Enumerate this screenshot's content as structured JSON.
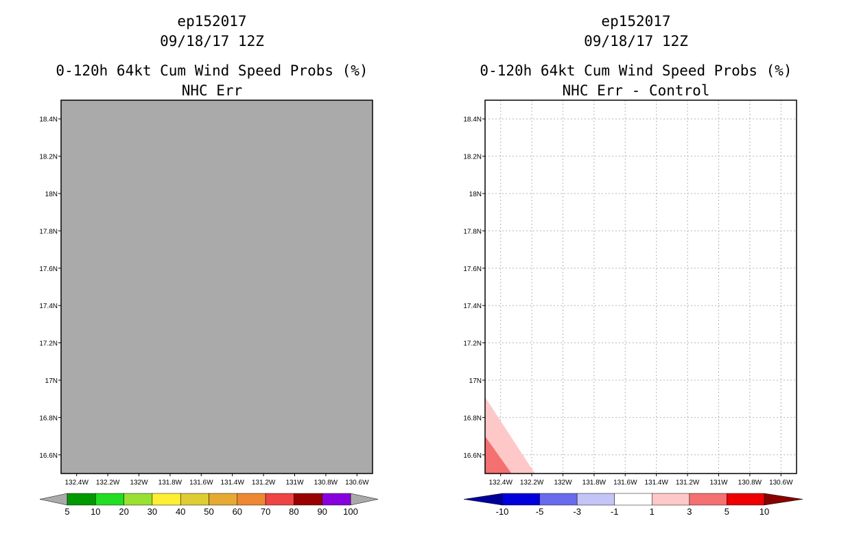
{
  "chart_data": [
    {
      "type": "heatmap",
      "title_lines": [
        "ep152017",
        "09/18/17 12Z",
        "0-120h 64kt Cum Wind Speed Probs (%)",
        "NHC Err"
      ],
      "x_ticks": [
        "132.4W",
        "132.2W",
        "132W",
        "131.8W",
        "131.6W",
        "131.4W",
        "131.2W",
        "131W",
        "130.8W",
        "130.6W"
      ],
      "x_tick_values": [
        -132.4,
        -132.2,
        -132.0,
        -131.8,
        -131.6,
        -131.4,
        -131.2,
        -131.0,
        -130.8,
        -130.6
      ],
      "y_ticks": [
        "18.4N",
        "18.2N",
        "18N",
        "17.8N",
        "17.6N",
        "17.4N",
        "17.2N",
        "17N",
        "16.8N",
        "16.6N"
      ],
      "y_tick_values": [
        18.4,
        18.2,
        18.0,
        17.8,
        17.6,
        17.4,
        17.2,
        17.0,
        16.8,
        16.6
      ],
      "xlim": [
        -132.5,
        -130.5
      ],
      "ylim": [
        16.5,
        18.5
      ],
      "grid": false,
      "field": "no data (entire domain undefined, shaded gray)",
      "undefined_color": "#aaaaaa",
      "colorbar": {
        "labels": [
          "5",
          "10",
          "20",
          "30",
          "40",
          "50",
          "60",
          "70",
          "80",
          "90",
          "100"
        ],
        "colors": [
          "#009900",
          "#22dd22",
          "#99e033",
          "#ffee33",
          "#ddcc33",
          "#e6aa33",
          "#ee8833",
          "#ee4444",
          "#990000",
          "#8800dd"
        ],
        "under_color": "#aaaaaa",
        "over_color": "#aaaaaa"
      }
    },
    {
      "type": "heatmap",
      "title_lines": [
        "ep152017",
        "09/18/17 12Z",
        "0-120h 64kt Cum Wind Speed Probs (%)",
        "NHC Err - Control"
      ],
      "x_ticks": [
        "132.4W",
        "132.2W",
        "132W",
        "131.8W",
        "131.6W",
        "131.4W",
        "131.2W",
        "131W",
        "130.8W",
        "130.6W"
      ],
      "x_tick_values": [
        -132.4,
        -132.2,
        -132.0,
        -131.8,
        -131.6,
        -131.4,
        -131.2,
        -131.0,
        -130.8,
        -130.6
      ],
      "y_ticks": [
        "18.4N",
        "18.2N",
        "18N",
        "17.8N",
        "17.6N",
        "17.4N",
        "17.2N",
        "17N",
        "16.8N",
        "16.6N"
      ],
      "y_tick_values": [
        18.4,
        18.2,
        18.0,
        17.8,
        17.6,
        17.4,
        17.2,
        17.0,
        16.8,
        16.6
      ],
      "xlim": [
        -132.5,
        -130.5
      ],
      "ylim": [
        16.5,
        18.5
      ],
      "grid": true,
      "contours": [
        {
          "level": "1 to 3",
          "color": "#ffc8c8",
          "points": [
            [
              -132.5,
              16.5
            ],
            [
              -132.5,
              16.91
            ],
            [
              -132.18,
              16.5
            ]
          ]
        },
        {
          "level": "3 to 5",
          "color": "#f57070",
          "points": [
            [
              -132.5,
              16.5
            ],
            [
              -132.5,
              16.7
            ],
            [
              -132.33,
              16.5
            ]
          ]
        }
      ],
      "colorbar": {
        "labels": [
          "-10",
          "-5",
          "-3",
          "-1",
          "1",
          "3",
          "5",
          "10"
        ],
        "colors": [
          "#0000dd",
          "#6a6aee",
          "#c4c4f6",
          "#ffffff",
          "#ffc8c8",
          "#f57070",
          "#ee0000"
        ],
        "under_color": "#000099",
        "over_color": "#880000"
      }
    }
  ]
}
